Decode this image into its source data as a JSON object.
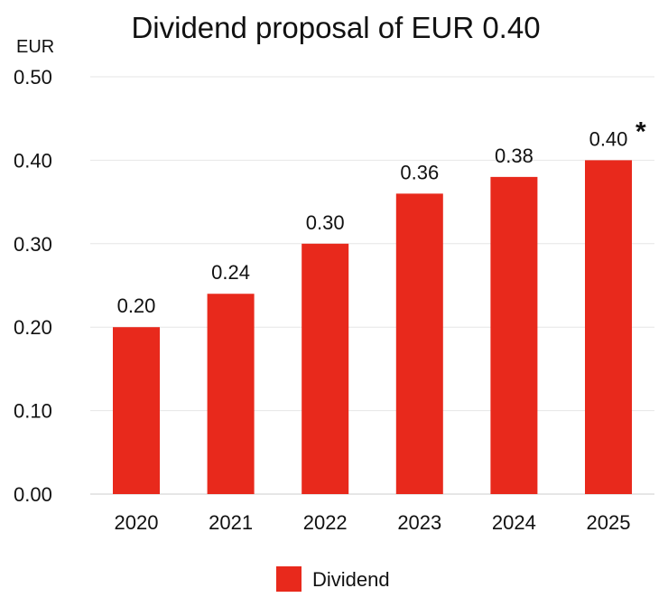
{
  "chart_data": {
    "type": "bar",
    "title": "Dividend proposal of EUR 0.40",
    "ylabel": "EUR",
    "xlabel": "",
    "categories": [
      "2020",
      "2021",
      "2022",
      "2023",
      "2024",
      "2025"
    ],
    "series": [
      {
        "name": "Dividend",
        "values": [
          0.2,
          0.24,
          0.3,
          0.36,
          0.38,
          0.4
        ]
      }
    ],
    "data_labels": [
      "0.20",
      "0.24",
      "0.30",
      "0.36",
      "0.38",
      "0.40"
    ],
    "annotations": [
      {
        "category": "2025",
        "text": "*"
      }
    ],
    "ylim": [
      0,
      0.5
    ],
    "yticks": [
      "0.00",
      "0.10",
      "0.20",
      "0.30",
      "0.40",
      "0.50"
    ],
    "grid": true,
    "legend": "bottom-center",
    "bar_color": "#e8291c"
  }
}
